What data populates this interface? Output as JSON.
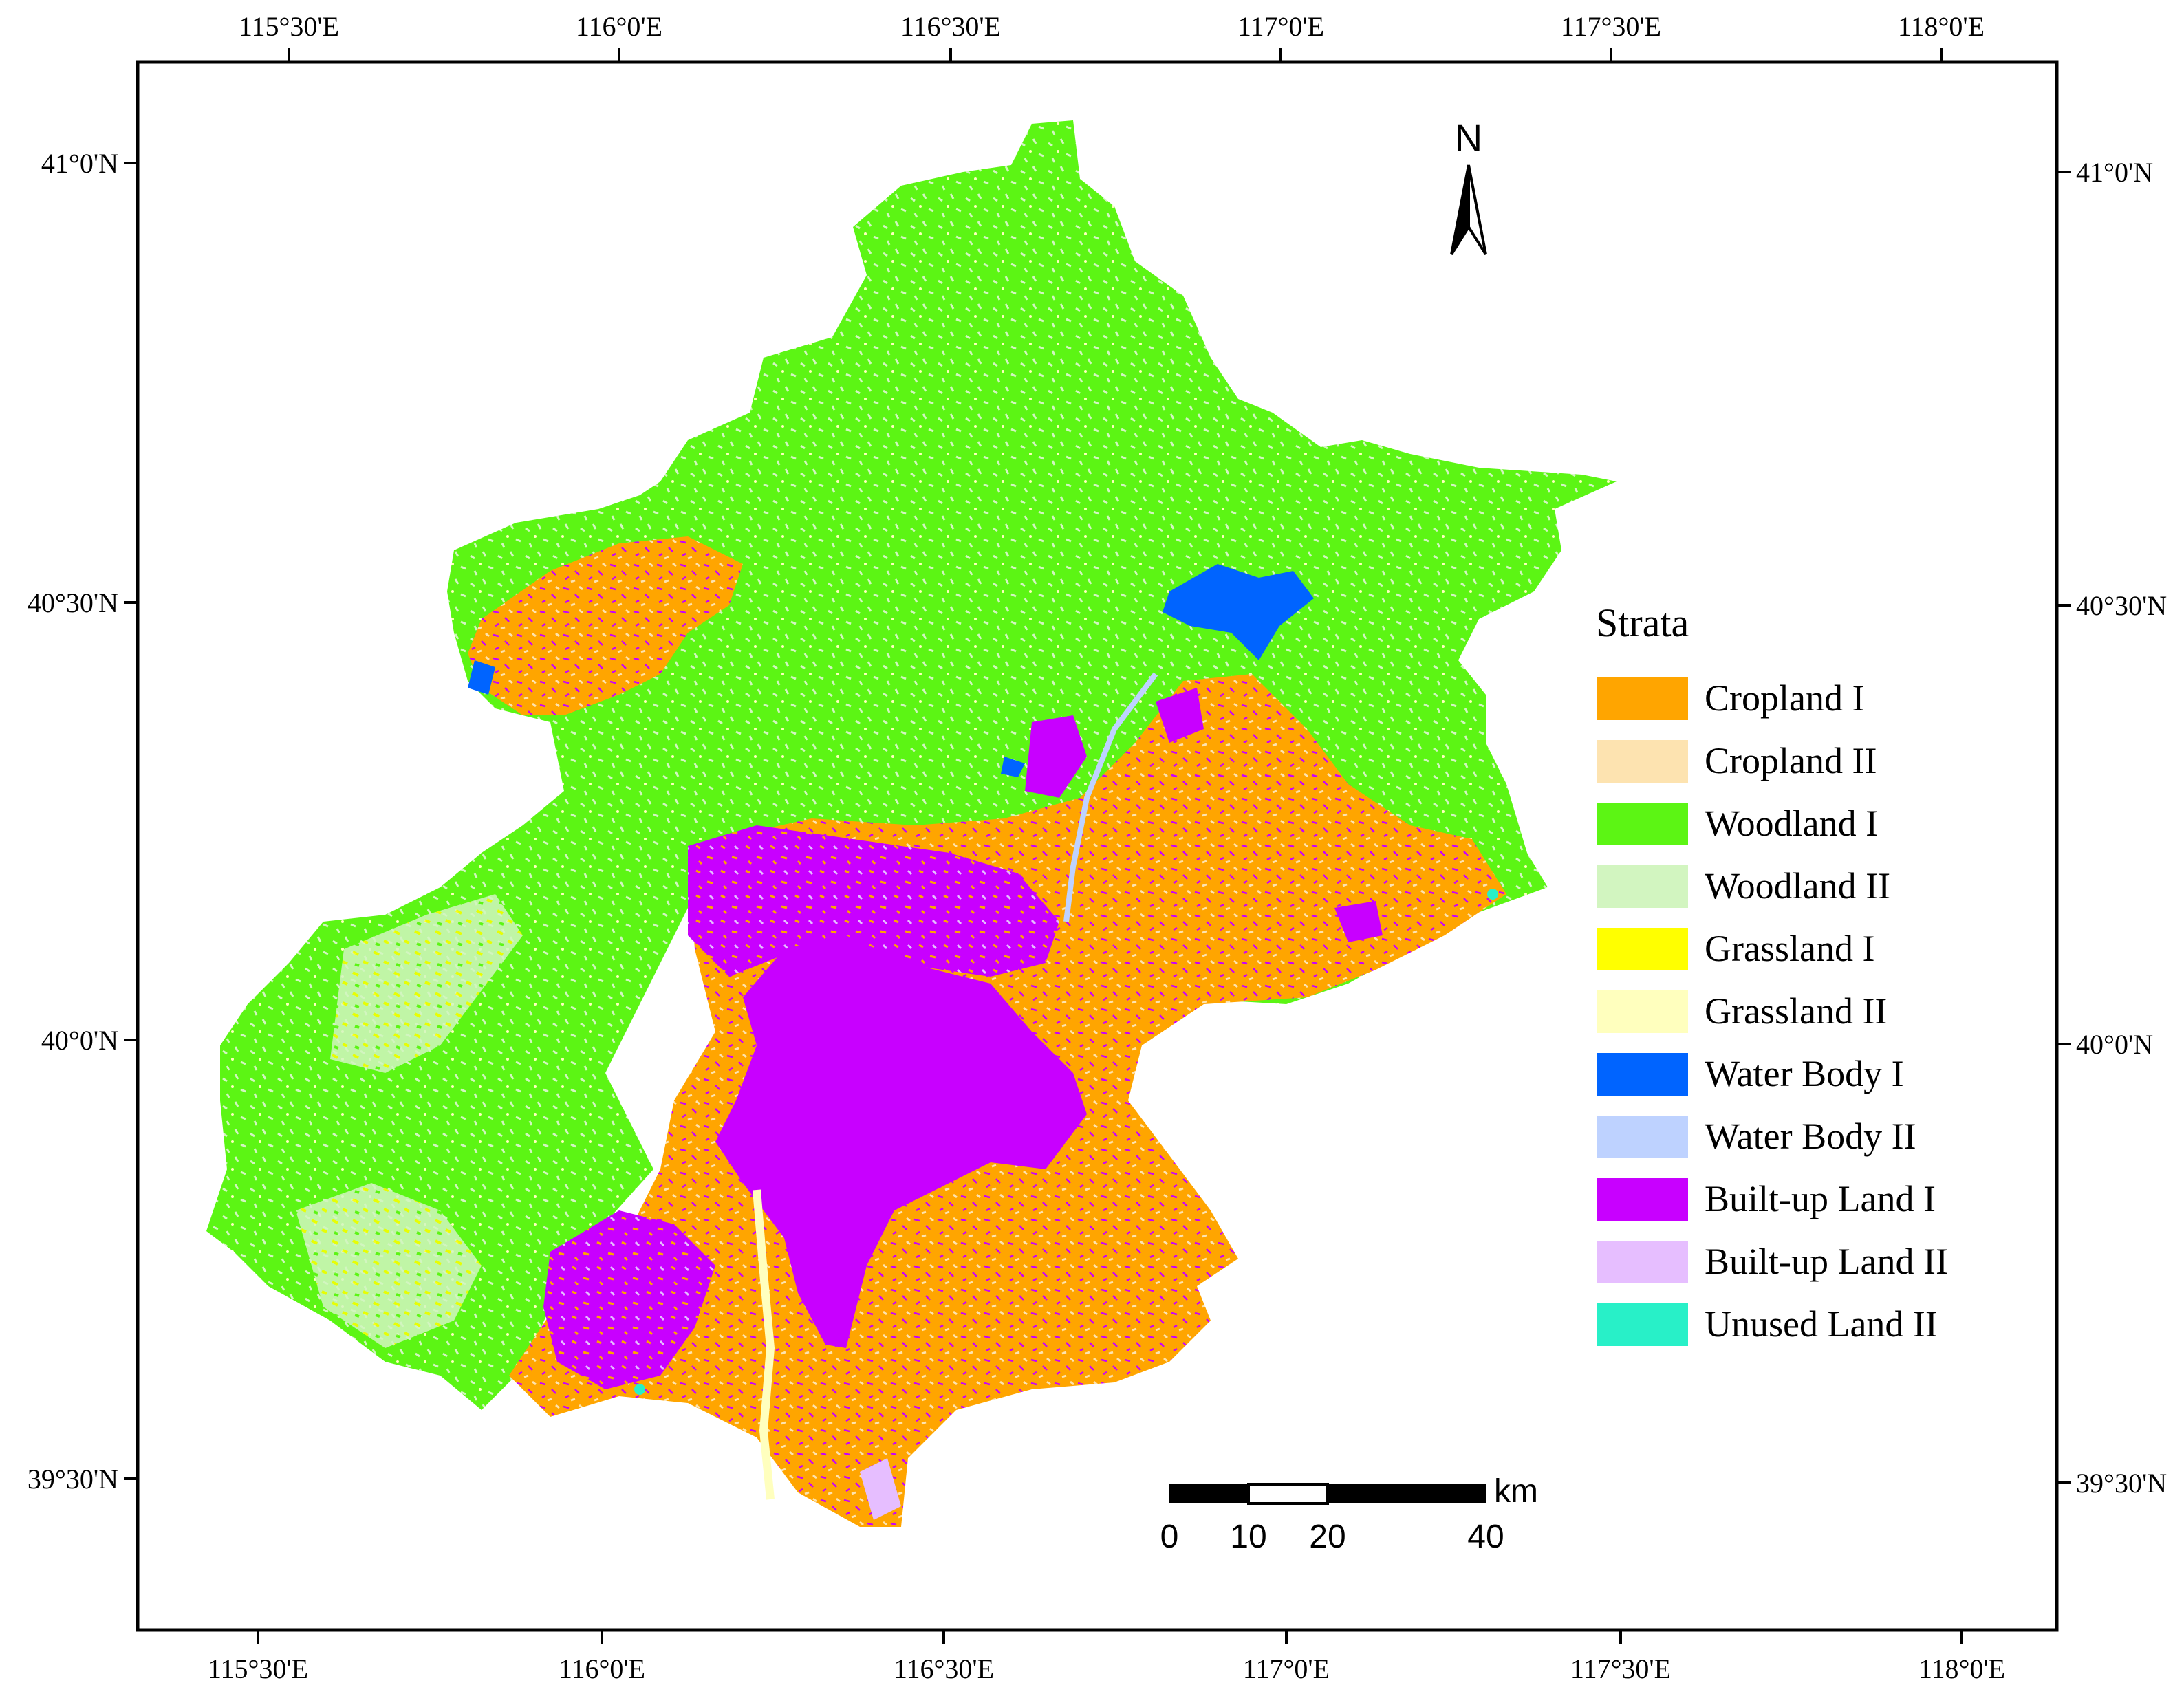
{
  "map": {
    "top_lon_labels": [
      "115°30'E",
      "116°0'E",
      "116°30'E",
      "117°0'E",
      "117°30'E",
      "118°0'E"
    ],
    "bottom_lon_labels": [
      "115°30'E",
      "116°0'E",
      "116°30'E",
      "117°0'E",
      "117°30'E",
      "118°0'E"
    ],
    "left_lat_labels": [
      "41°0'N",
      "40°30'N",
      "40°0'N",
      "39°30'N"
    ],
    "right_lat_labels": [
      "41°0'N",
      "40°30'N",
      "40°0'N",
      "39°30'N"
    ],
    "north_arrow": {
      "label": "N",
      "icon": "north-arrow-icon"
    },
    "scale_bar": {
      "unit": "km",
      "ticks": [
        "0",
        "10",
        "20",
        "40"
      ]
    }
  },
  "legend": {
    "title": "Strata",
    "items": [
      {
        "label": "Cropland I",
        "color": "#ffa500"
      },
      {
        "label": "Cropland II",
        "color": "#fde3b0"
      },
      {
        "label": "Woodland I",
        "color": "#5cf514"
      },
      {
        "label": "Woodland II",
        "color": "#d2f5c0"
      },
      {
        "label": "Grassland I",
        "color": "#ffff00"
      },
      {
        "label": "Grassland II",
        "color": "#ffffbe"
      },
      {
        "label": "Water Body I",
        "color": "#0064ff"
      },
      {
        "label": "Water Body II",
        "color": "#bed2ff"
      },
      {
        "label": "Built-up Land I",
        "color": "#c800ff"
      },
      {
        "label": "Built-up Land II",
        "color": "#e6beff"
      },
      {
        "label": "Unused Land II",
        "color": "#28f0c8"
      }
    ]
  }
}
